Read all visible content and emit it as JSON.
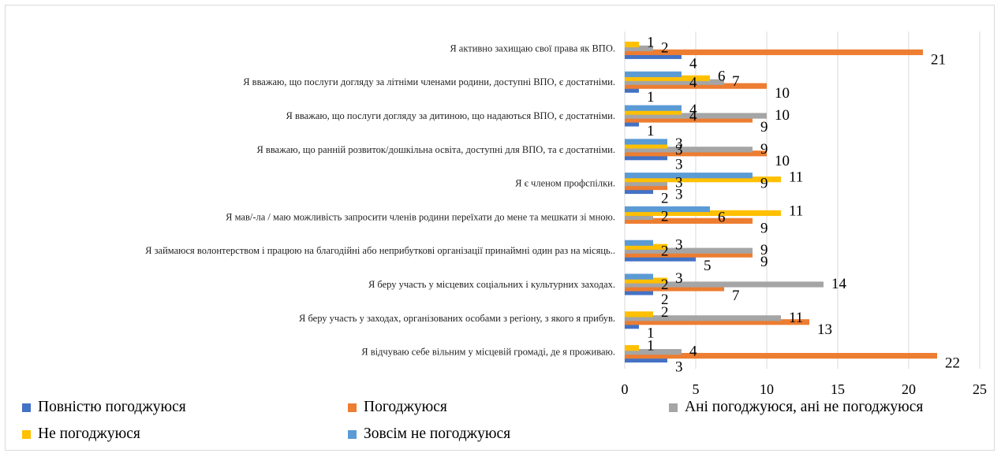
{
  "chart_data": {
    "type": "bar",
    "orientation": "horizontal",
    "title": "",
    "xlabel": "",
    "ylabel": "",
    "xlim": [
      0,
      25
    ],
    "x_ticks": [
      "0",
      "5",
      "10",
      "15",
      "20",
      "25"
    ],
    "grid": true,
    "legend_position": "bottom",
    "categories": [
      "Я відчуваю себе вільним у місцевій громаді, де я проживаю.",
      "Я беру участь у заходах, організованих особами з регіону, з якого я прибув.",
      "Я беру участь у місцевих соціальних і культурних заходах.",
      "Я займаюся волонтерством і працюю на благодійні або неприбуткові організації принаймні один раз на місяць..",
      "Я мав/-ла / маю можливість запросити членів родини переїхати до мене та мешкати зі мною.",
      "Я є членом профспілки.",
      "Я вважаю, що ранній розвиток/дошкільна освіта, доступні для ВПО, та є достатніми.",
      "Я вважаю, що послуги догляду за дитиною, що надаються ВПО, є достатніми.",
      "Я вважаю, що послуги догляду за літніми членами родини, доступні ВПО, є достатніми.",
      "Я активно захищаю свої права як ВПО."
    ],
    "series": [
      {
        "name": "Повністю погоджуюся",
        "color": "#4472C4",
        "values": [
          3,
          1,
          2,
          5,
          0,
          2,
          3,
          1,
          1,
          4
        ]
      },
      {
        "name": "Погоджуюся",
        "color": "#ED7D31",
        "values": [
          22,
          13,
          7,
          9,
          9,
          3,
          10,
          9,
          10,
          21
        ]
      },
      {
        "name": "Ані погоджуюся, ані не погоджуюся",
        "color": "#A5A5A5",
        "values": [
          4,
          11,
          14,
          9,
          2,
          3,
          9,
          10,
          7,
          2
        ]
      },
      {
        "name": "Не погоджуюся",
        "color": "#FFC000",
        "values": [
          1,
          2,
          3,
          3,
          11,
          11,
          3,
          4,
          6,
          1
        ]
      },
      {
        "name": "Зовсім не погоджуюся",
        "color": "#5B9BD5",
        "values": [
          0,
          0,
          2,
          2,
          6,
          9,
          3,
          4,
          4,
          0
        ]
      }
    ]
  }
}
